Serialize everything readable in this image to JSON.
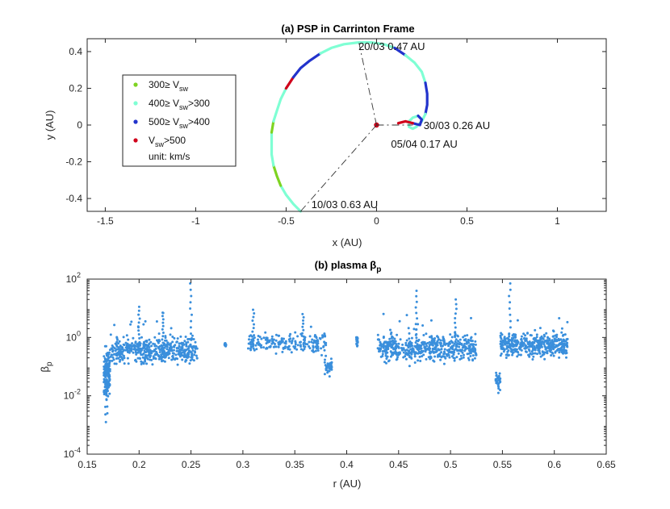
{
  "chart_data": [
    {
      "type": "scatter",
      "title": "(a) PSP in Carrinton Frame",
      "xlabel": "x (AU)",
      "ylabel": "y (AU)",
      "xlim": [
        -1.6,
        1.27
      ],
      "ylim": [
        -0.47,
        0.47
      ],
      "xticks": [
        "-1.5",
        "-1",
        "-0.5",
        "0",
        "0.5",
        "1"
      ],
      "xtick_values": [
        -1.5,
        -1,
        -0.5,
        0,
        0.5,
        1
      ],
      "yticks": [
        "0.4",
        "0.2",
        "0",
        "-0.2",
        "-0.4"
      ],
      "ytick_values": [
        0.4,
        0.2,
        0,
        -0.2,
        -0.4
      ],
      "colors": {
        "slow": "#7ed321",
        "mid": "#7fffd4",
        "fast": "#2233cc",
        "vfast": "#d0021b"
      },
      "legend": {
        "entries": [
          {
            "label": "300≥ V",
            "sub": "sw",
            "suffix": "",
            "color": "#7ed321"
          },
          {
            "label": "400≥ V",
            "sub": "sw",
            "suffix": ">300",
            "color": "#7fffd4"
          },
          {
            "label": "500≥ V",
            "sub": "sw",
            "suffix": ">400",
            "color": "#2233cc"
          },
          {
            "label": "V",
            "sub": "sw",
            "suffix": ">500",
            "color": "#d0021b"
          }
        ],
        "unit": "unit: km/s",
        "placement": "upper-left"
      },
      "annotations": [
        {
          "text": "20/03 0.47 AU",
          "x": -0.1,
          "y": 0.43
        },
        {
          "text": "30/03 0.26 AU",
          "x": 0.26,
          "y": 0.0
        },
        {
          "text": "05/04 0.17 AU",
          "x": 0.08,
          "y": -0.1
        },
        {
          "text": "10/03 0.63 AU",
          "x": -0.36,
          "y": -0.43
        }
      ],
      "lines_to_sun": [
        {
          "from": [
            0,
            0
          ],
          "to": [
            -0.1,
            0.46
          ]
        },
        {
          "from": [
            0,
            0
          ],
          "to": [
            0.2,
            0.0
          ]
        },
        {
          "from": [
            0,
            0
          ],
          "to": [
            -0.42,
            -0.47
          ]
        }
      ],
      "trajectory_xy": [
        [
          -0.42,
          -0.47
        ],
        [
          -0.46,
          -0.43
        ],
        [
          -0.5,
          -0.38
        ],
        [
          -0.53,
          -0.33
        ],
        [
          -0.55,
          -0.28
        ],
        [
          -0.57,
          -0.22
        ],
        [
          -0.58,
          -0.16
        ],
        [
          -0.58,
          -0.1
        ],
        [
          -0.58,
          -0.04
        ],
        [
          -0.57,
          0.02
        ],
        [
          -0.55,
          0.08
        ],
        [
          -0.53,
          0.14
        ],
        [
          -0.5,
          0.2
        ],
        [
          -0.46,
          0.26
        ],
        [
          -0.42,
          0.31
        ],
        [
          -0.37,
          0.35
        ],
        [
          -0.31,
          0.39
        ],
        [
          -0.25,
          0.42
        ],
        [
          -0.18,
          0.44
        ],
        [
          -0.1,
          0.45
        ],
        [
          -0.03,
          0.45
        ],
        [
          0.04,
          0.44
        ],
        [
          0.1,
          0.42
        ],
        [
          0.16,
          0.38
        ],
        [
          0.21,
          0.34
        ],
        [
          0.25,
          0.29
        ],
        [
          0.27,
          0.23
        ],
        [
          0.28,
          0.17
        ],
        [
          0.28,
          0.11
        ],
        [
          0.27,
          0.06
        ],
        [
          0.25,
          0.02
        ],
        [
          0.22,
          -0.01
        ],
        [
          0.2,
          -0.02
        ],
        [
          0.18,
          -0.01
        ],
        [
          0.18,
          0.02
        ],
        [
          0.2,
          0.04
        ],
        [
          0.23,
          0.05
        ],
        [
          0.25,
          0.03
        ],
        [
          0.24,
          0.0
        ],
        [
          0.2,
          0.01
        ],
        [
          0.16,
          0.02
        ],
        [
          0.12,
          0.01
        ]
      ],
      "trajectory_segments": [
        {
          "from": 0,
          "to": 2,
          "color": "#7fffd4"
        },
        {
          "from": 2,
          "to": 3,
          "color": "#7fffd4"
        },
        {
          "from": 3,
          "to": 5,
          "color": "#7ed321"
        },
        {
          "from": 5,
          "to": 8,
          "color": "#7fffd4"
        },
        {
          "from": 8,
          "to": 9,
          "color": "#7ed321"
        },
        {
          "from": 9,
          "to": 12,
          "color": "#7fffd4"
        },
        {
          "from": 12,
          "to": 13,
          "color": "#d0021b"
        },
        {
          "from": 13,
          "to": 16,
          "color": "#2233cc"
        },
        {
          "from": 16,
          "to": 20,
          "color": "#7fffd4"
        },
        {
          "from": 20,
          "to": 22,
          "color": "#7fffd4"
        },
        {
          "from": 22,
          "to": 23,
          "color": "#2233cc"
        },
        {
          "from": 23,
          "to": 26,
          "color": "#7fffd4"
        },
        {
          "from": 26,
          "to": 29,
          "color": "#2233cc"
        },
        {
          "from": 29,
          "to": 33,
          "color": "#7fffd4"
        },
        {
          "from": 33,
          "to": 36,
          "color": "#7fffd4"
        },
        {
          "from": 36,
          "to": 39,
          "color": "#2233cc"
        },
        {
          "from": 39,
          "to": 41,
          "color": "#d0021b"
        }
      ],
      "sun_marker": {
        "x": 0,
        "y": 0,
        "color": "#d0021b"
      }
    },
    {
      "type": "scatter",
      "title": "(b) plasma β",
      "title_sub": "p",
      "xlabel": "r (AU)",
      "ylabel": "β",
      "ylabel_sub": "p",
      "yscale": "log",
      "xlim": [
        0.15,
        0.65
      ],
      "ylim_log10": [
        -4,
        2
      ],
      "xticks": [
        "0.15",
        "0.2",
        "0.25",
        "0.3",
        "0.35",
        "0.4",
        "0.45",
        "0.5",
        "0.55",
        "0.6",
        "0.65"
      ],
      "xtick_values": [
        0.15,
        0.2,
        0.25,
        0.3,
        0.35,
        0.4,
        0.45,
        0.5,
        0.55,
        0.6,
        0.65
      ],
      "yticks": [
        {
          "base": "10",
          "exp": "2",
          "value": 2
        },
        {
          "base": "10",
          "exp": "0",
          "value": 0
        },
        {
          "base": "10",
          "exp": "-2",
          "value": -2
        },
        {
          "base": "10",
          "exp": "-4",
          "value": -4
        }
      ],
      "marker_color": "#3a8fdc",
      "data_clusters": [
        {
          "r": [
            0.166,
            0.172
          ],
          "log_beta_center": -1.3,
          "spread": 0.45,
          "n": 140
        },
        {
          "r": [
            0.172,
            0.256
          ],
          "log_beta_center": -0.45,
          "spread": 0.28,
          "n": 500
        },
        {
          "r": [
            0.305,
            0.38
          ],
          "log_beta_center": -0.2,
          "spread": 0.25,
          "n": 200
        },
        {
          "r": [
            0.378,
            0.386
          ],
          "log_beta_center": -1.0,
          "spread": 0.2,
          "n": 40
        },
        {
          "r": [
            0.43,
            0.525
          ],
          "log_beta_center": -0.35,
          "spread": 0.32,
          "n": 550
        },
        {
          "r": [
            0.543,
            0.548
          ],
          "log_beta_center": -1.5,
          "spread": 0.2,
          "n": 30
        },
        {
          "r": [
            0.548,
            0.613
          ],
          "log_beta_center": -0.25,
          "spread": 0.27,
          "n": 420
        }
      ],
      "spikes": [
        {
          "r": 0.168,
          "log_beta": -2.9
        },
        {
          "r": 0.169,
          "log_beta": -2.6
        },
        {
          "r": 0.2,
          "log_beta": 1.05
        },
        {
          "r": 0.223,
          "log_beta": 0.85
        },
        {
          "r": 0.25,
          "log_beta": 1.85
        },
        {
          "r": 0.283,
          "log_beta": -0.2
        },
        {
          "r": 0.31,
          "log_beta": 0.95
        },
        {
          "r": 0.358,
          "log_beta": 0.8
        },
        {
          "r": 0.41,
          "log_beta": 0.0
        },
        {
          "r": 0.467,
          "log_beta": 1.6
        },
        {
          "r": 0.505,
          "log_beta": 1.3
        },
        {
          "r": 0.557,
          "log_beta": 1.85
        }
      ],
      "isolated_points": [
        {
          "r": 0.283,
          "log_beta": -0.2
        },
        {
          "r": 0.41,
          "log_beta": 0.0
        }
      ]
    }
  ]
}
